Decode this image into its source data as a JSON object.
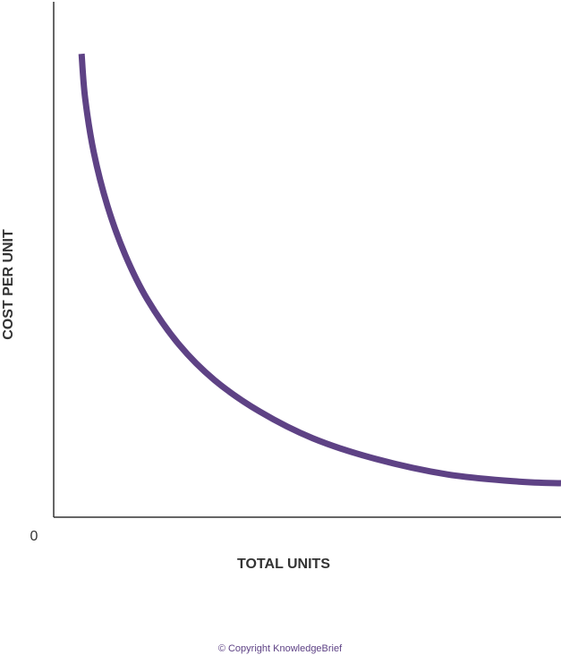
{
  "chart_data": {
    "type": "line",
    "x_label": "TOTAL UNITS",
    "y_label": "COST PER UNIT",
    "caption": "© Copyright KnowledgeBrief",
    "x": [
      5.5,
      6.2,
      7.9,
      10.6,
      14.1,
      18.5,
      24.7,
      31.7,
      40.6,
      51.1,
      63.5,
      77.6,
      91.7,
      100
    ],
    "series": [
      {
        "color": "#5e4285",
        "values": [
          89.9,
          81.3,
          70.8,
          60.4,
          50.9,
          42.2,
          33.5,
          26.6,
          20.5,
          15.3,
          11.3,
          8.3,
          6.9,
          6.6
        ]
      }
    ],
    "xlim": [
      0,
      100
    ],
    "ylim": [
      0,
      100
    ],
    "xticks": [
      0
    ],
    "grid": false
  }
}
